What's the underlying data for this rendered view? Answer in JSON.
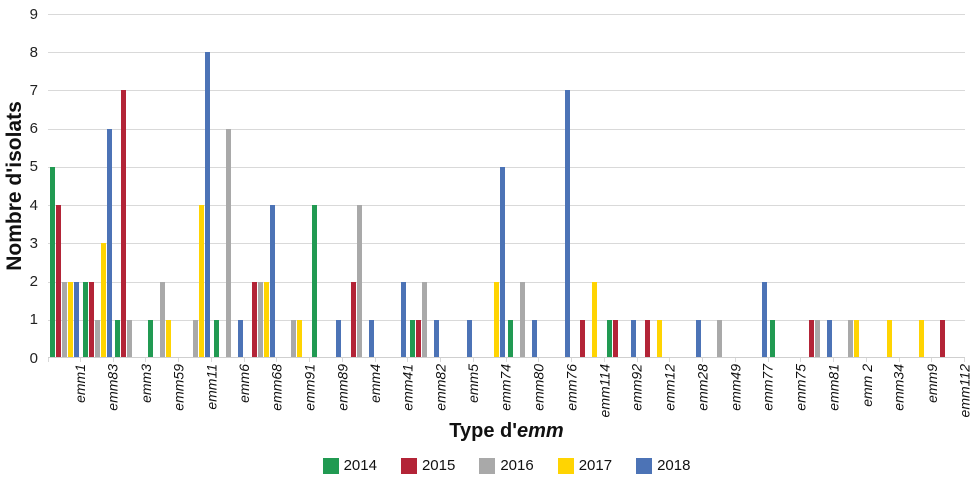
{
  "chart_data": {
    "type": "bar",
    "title": "",
    "ylabel": "Nombre d'isolats",
    "xlabel": "Type d'emm",
    "xlabel_prefix": "Type d'",
    "xlabel_emphasis": "emm",
    "ylim": [
      0,
      9
    ],
    "ytick_step": 1,
    "grid": true,
    "legend_position": "bottom",
    "categories": [
      "emm1",
      "emm83",
      "emm3",
      "emm59",
      "emm11",
      "emm6",
      "emm68",
      "emm91",
      "emm89",
      "emm4",
      "emm41",
      "emm82",
      "emm5",
      "emm74",
      "emm80",
      "emm76",
      "emm114",
      "emm92",
      "emm12",
      "emm28",
      "emm49",
      "emm77",
      "emm75",
      "emm81",
      "emm 2",
      "emm34",
      "emm9",
      "emm112"
    ],
    "series": [
      {
        "name": "2014",
        "color": "#219a52",
        "values": [
          5,
          2,
          1,
          1,
          0,
          1,
          0,
          0,
          4,
          0,
          0,
          1,
          0,
          0,
          1,
          0,
          0,
          1,
          0,
          0,
          0,
          0,
          1,
          0,
          0,
          0,
          0,
          0
        ]
      },
      {
        "name": "2015",
        "color": "#b32437",
        "values": [
          4,
          2,
          7,
          0,
          0,
          0,
          2,
          0,
          0,
          2,
          0,
          1,
          0,
          0,
          0,
          0,
          1,
          1,
          1,
          0,
          0,
          0,
          0,
          1,
          0,
          0,
          0,
          1
        ]
      },
      {
        "name": "2016",
        "color": "#a9a9a9",
        "values": [
          2,
          1,
          1,
          2,
          1,
          6,
          2,
          1,
          0,
          4,
          0,
          2,
          0,
          0,
          2,
          0,
          0,
          0,
          0,
          0,
          1,
          0,
          0,
          1,
          1,
          0,
          0,
          0
        ]
      },
      {
        "name": "2017",
        "color": "#ffd402",
        "values": [
          2,
          3,
          0,
          1,
          4,
          0,
          2,
          1,
          0,
          0,
          0,
          0,
          0,
          2,
          0,
          0,
          2,
          0,
          1,
          0,
          0,
          0,
          0,
          0,
          1,
          1,
          1,
          0
        ]
      },
      {
        "name": "2018",
        "color": "#4c73b6",
        "values": [
          2,
          6,
          0,
          0,
          8,
          1,
          4,
          0,
          1,
          1,
          2,
          1,
          1,
          5,
          1,
          7,
          0,
          1,
          0,
          1,
          0,
          2,
          0,
          1,
          0,
          0,
          0,
          0
        ]
      }
    ]
  }
}
